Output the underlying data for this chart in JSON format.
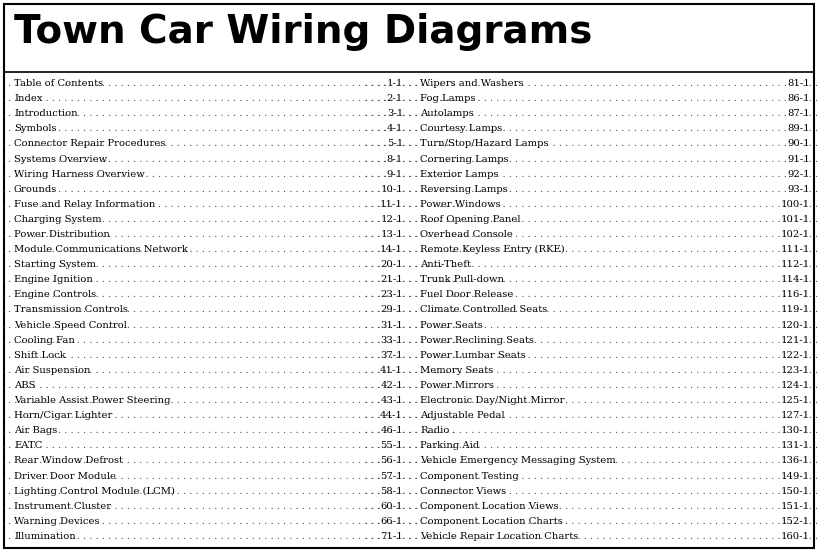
{
  "title": "Town Car Wiring Diagrams",
  "background_color": "#ffffff",
  "border_color": "#000000",
  "title_fontsize": 28,
  "left_entries": [
    [
      "Table of Contents",
      "1-1"
    ],
    [
      "Index",
      "2-1"
    ],
    [
      "Introduction",
      "3-1"
    ],
    [
      "Symbols",
      "4-1"
    ],
    [
      "Connector Repair Procedures",
      "5-1"
    ],
    [
      "Systems Overview",
      "8-1"
    ],
    [
      "Wiring Harness Overview",
      "9-1"
    ],
    [
      "Grounds",
      "10-1"
    ],
    [
      "Fuse and Relay Information",
      "11-1"
    ],
    [
      "Charging System",
      "12-1"
    ],
    [
      "Power Distribution",
      "13-1"
    ],
    [
      "Module Communications Network",
      "14-1"
    ],
    [
      "Starting System",
      "20-1"
    ],
    [
      "Engine Ignition",
      "21-1"
    ],
    [
      "Engine Controls",
      "23-1"
    ],
    [
      "Transmission Controls",
      "29-1"
    ],
    [
      "Vehicle Speed Control",
      "31-1"
    ],
    [
      "Cooling Fan",
      "33-1"
    ],
    [
      "Shift Lock",
      "37-1"
    ],
    [
      "Air Suspension",
      "41-1"
    ],
    [
      "ABS",
      "42-1"
    ],
    [
      "Variable Assist Power Steering",
      "43-1"
    ],
    [
      "Horn/Cigar Lighter",
      "44-1"
    ],
    [
      "Air Bags",
      "46-1"
    ],
    [
      "EATC",
      "55-1"
    ],
    [
      "Rear Window Defrost",
      "56-1"
    ],
    [
      "Driver Door Module",
      "57-1"
    ],
    [
      "Lighting Control Module (LCM)",
      "58-1"
    ],
    [
      "Instrument Cluster",
      "60-1"
    ],
    [
      "Warning Devices",
      "66-1"
    ],
    [
      "Illumination",
      "71-1"
    ]
  ],
  "right_entries": [
    [
      "Wipers and Washers",
      "81-1"
    ],
    [
      "Fog Lamps",
      "86-1"
    ],
    [
      "Autolamps",
      "87-1"
    ],
    [
      "Courtesy Lamps",
      "89-1"
    ],
    [
      "Turn/Stop/Hazard Lamps",
      "90-1"
    ],
    [
      "Cornering Lamps",
      "91-1"
    ],
    [
      "Exterior Lamps",
      "92-1"
    ],
    [
      "Reversing Lamps",
      "93-1"
    ],
    [
      "Power Windows",
      "100-1"
    ],
    [
      "Roof Opening Panel",
      "101-1"
    ],
    [
      "Overhead Console",
      "102-1"
    ],
    [
      "Remote Keyless Entry (RKE)",
      "111-1"
    ],
    [
      "Anti-Theft",
      "112-1"
    ],
    [
      "Trunk Pull-down",
      "114-1"
    ],
    [
      "Fuel Door Release",
      "116-1"
    ],
    [
      "Climate Controlled Seats",
      "119-1"
    ],
    [
      "Power Seats",
      "120-1"
    ],
    [
      "Power Reclining Seats",
      "121-1"
    ],
    [
      "Power Lumbar Seats",
      "122-1"
    ],
    [
      "Memory Seats",
      "123-1"
    ],
    [
      "Power Mirrors",
      "124-1"
    ],
    [
      "Electronic Day/Night Mirror",
      "125-1"
    ],
    [
      "Adjustable Pedal",
      "127-1"
    ],
    [
      "Radio",
      "130-1"
    ],
    [
      "Parking Aid",
      "131-1"
    ],
    [
      "Vehicle Emergency Messaging System",
      "136-1"
    ],
    [
      "Component Testing",
      "149-1"
    ],
    [
      "Connector Views",
      "150-1"
    ],
    [
      "Component Location Views",
      "151-1"
    ],
    [
      "Component Location Charts",
      "152-1"
    ],
    [
      "Vehicle Repair Location Charts",
      "160-1"
    ]
  ]
}
